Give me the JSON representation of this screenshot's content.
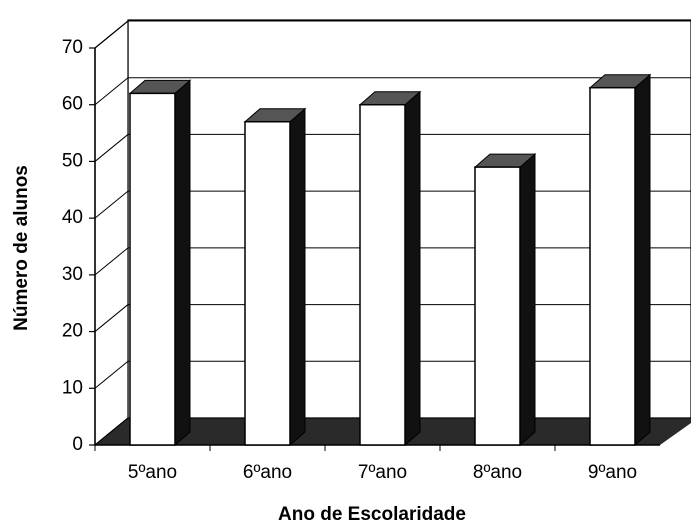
{
  "chart_data": {
    "type": "bar3d",
    "x_label": "Ano de Escolaridade",
    "y_label": "Número de alunos",
    "categories": [
      "5ºano",
      "6ºano",
      "7ºano",
      "8ºano",
      "9ºano"
    ],
    "values": [
      62,
      57,
      60,
      49,
      63
    ],
    "color": "#ffffff",
    "ylim": [
      0,
      70
    ],
    "yticks": [
      0,
      10,
      20,
      30,
      40,
      50,
      60,
      70
    ],
    "grid": true
  }
}
